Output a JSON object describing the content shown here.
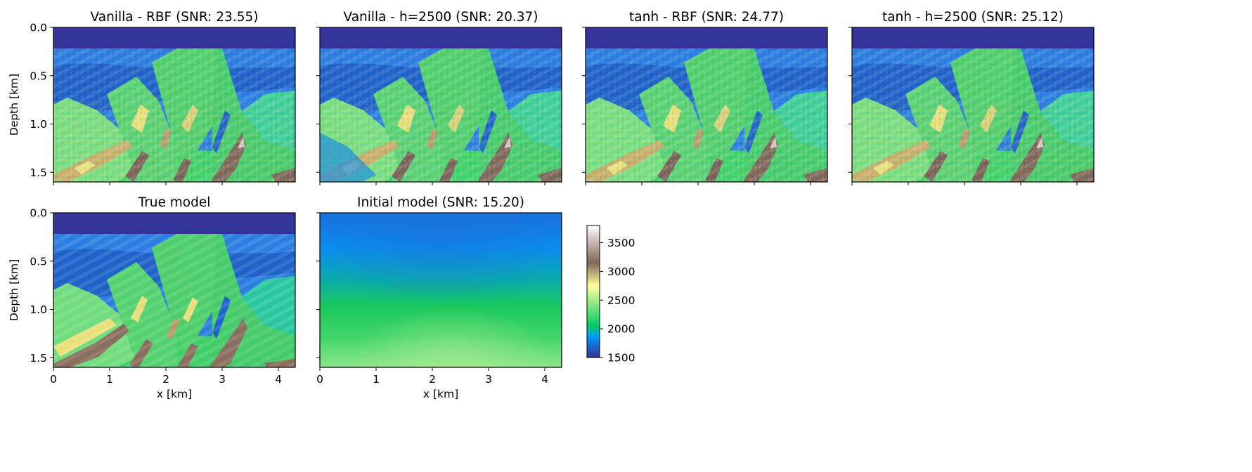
{
  "chart_data": [
    {
      "type": "heatmap",
      "title": "Vanilla - RBF (SNR: 23.55)",
      "xlabel": "",
      "ylabel": "Depth [km]",
      "xlim": [
        0,
        4.3
      ],
      "ylim": [
        0,
        1.6
      ],
      "y_inverted": true,
      "x_ticks": [
        "0",
        "1",
        "2",
        "3",
        "4"
      ],
      "y_ticks": [
        "0.0",
        "0.5",
        "1.0",
        "1.5"
      ],
      "x_ticklabels_shown": false,
      "y_ticklabels_shown": true,
      "field": "reconstructed velocity model",
      "snr": 23.55
    },
    {
      "type": "heatmap",
      "title": "Vanilla - h=2500 (SNR: 20.37)",
      "xlabel": "",
      "ylabel": "",
      "xlim": [
        0,
        4.3
      ],
      "ylim": [
        0,
        1.6
      ],
      "y_inverted": true,
      "x_ticks": [
        "0",
        "1",
        "2",
        "3",
        "4"
      ],
      "y_ticks": [
        "0.0",
        "0.5",
        "1.0",
        "1.5"
      ],
      "x_ticklabels_shown": false,
      "y_ticklabels_shown": false,
      "field": "reconstructed velocity model",
      "snr": 20.37
    },
    {
      "type": "heatmap",
      "title": "tanh - RBF (SNR: 24.77)",
      "xlabel": "",
      "ylabel": "",
      "xlim": [
        0,
        4.3
      ],
      "ylim": [
        0,
        1.6
      ],
      "y_inverted": true,
      "x_ticks": [
        "0",
        "1",
        "2",
        "3",
        "4"
      ],
      "y_ticks": [
        "0.0",
        "0.5",
        "1.0",
        "1.5"
      ],
      "x_ticklabels_shown": false,
      "y_ticklabels_shown": false,
      "field": "reconstructed velocity model",
      "snr": 24.77
    },
    {
      "type": "heatmap",
      "title": "tanh - h=2500 (SNR: 25.12)",
      "xlabel": "",
      "ylabel": "",
      "xlim": [
        0,
        4.3
      ],
      "ylim": [
        0,
        1.6
      ],
      "y_inverted": true,
      "x_ticks": [
        "0",
        "1",
        "2",
        "3",
        "4"
      ],
      "y_ticks": [
        "0.0",
        "0.5",
        "1.0",
        "1.5"
      ],
      "x_ticklabels_shown": false,
      "y_ticklabels_shown": false,
      "field": "reconstructed velocity model",
      "snr": 25.12
    },
    {
      "type": "heatmap",
      "title": "True model",
      "xlabel": "x [km]",
      "ylabel": "Depth [km]",
      "xlim": [
        0,
        4.3
      ],
      "ylim": [
        0,
        1.6
      ],
      "y_inverted": true,
      "x_ticks": [
        "0",
        "1",
        "2",
        "3",
        "4"
      ],
      "y_ticks": [
        "0.0",
        "0.5",
        "1.0",
        "1.5"
      ],
      "x_ticklabels_shown": true,
      "y_ticklabels_shown": true,
      "field": "true velocity model"
    },
    {
      "type": "heatmap",
      "title": "Initial model (SNR: 15.20)",
      "xlabel": "x [km]",
      "ylabel": "",
      "xlim": [
        0,
        4.3
      ],
      "ylim": [
        0,
        1.6
      ],
      "y_inverted": true,
      "x_ticks": [
        "0",
        "1",
        "2",
        "3",
        "4"
      ],
      "y_ticks": [
        "0.0",
        "0.5",
        "1.0",
        "1.5"
      ],
      "x_ticklabels_shown": true,
      "y_ticklabels_shown": false,
      "field": "smooth initial velocity model",
      "snr": 15.2
    }
  ],
  "colorbar": {
    "range": [
      1500,
      3800
    ],
    "ticks": [
      "1500",
      "2000",
      "2500",
      "3000",
      "3500"
    ],
    "tick_values": [
      1500,
      2000,
      2500,
      3000,
      3500
    ],
    "colormap": "terrain",
    "colormap_stops": [
      {
        "v": 1500,
        "color": "#333399"
      },
      {
        "v": 1700,
        "color": "#1a66cc"
      },
      {
        "v": 1850,
        "color": "#0099ff"
      },
      {
        "v": 2050,
        "color": "#00cc66"
      },
      {
        "v": 2400,
        "color": "#80e680"
      },
      {
        "v": 2750,
        "color": "#ffff99"
      },
      {
        "v": 3150,
        "color": "#806659"
      },
      {
        "v": 3500,
        "color": "#c4b5b1"
      },
      {
        "v": 3800,
        "color": "#ffffff"
      }
    ]
  },
  "colors": {
    "water": "#333399",
    "frame": "#000000",
    "background": "#ffffff"
  }
}
